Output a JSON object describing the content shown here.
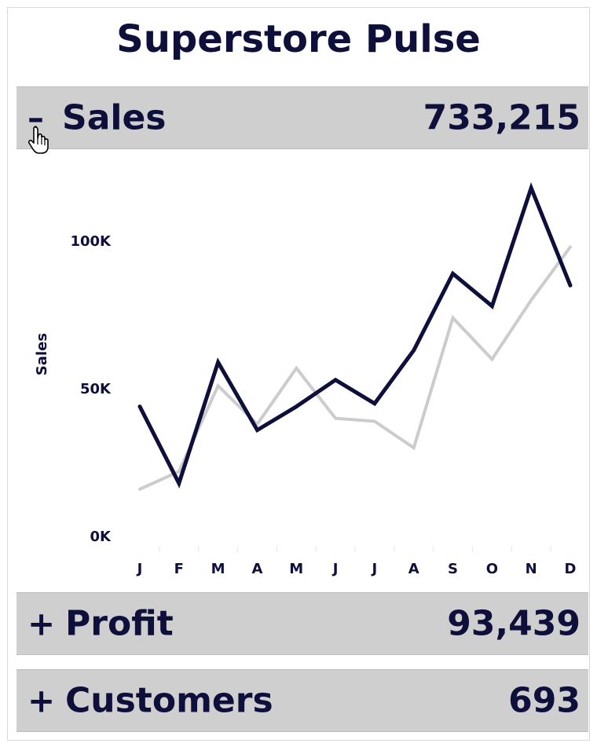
{
  "title": "Superstore Pulse",
  "sections": [
    {
      "toggle": "–",
      "label": "Sales",
      "value": "733,215"
    },
    {
      "toggle": "+",
      "label": "Profit",
      "value": "93,439"
    },
    {
      "toggle": "+",
      "label": "Customers",
      "value": "693"
    }
  ],
  "colors": {
    "primary": "#0f0f3c",
    "secondary": "#cccccc",
    "header_bg": "#cfcfcf"
  },
  "chart_data": {
    "type": "line",
    "ylabel": "Sales",
    "xlabel": "",
    "categories": [
      "J",
      "F",
      "M",
      "A",
      "M",
      "J",
      "J",
      "A",
      "S",
      "O",
      "N",
      "D"
    ],
    "yticks": [
      "0K",
      "50K",
      "100K"
    ],
    "ylim": [
      0,
      125000
    ],
    "grid": false,
    "series": [
      {
        "values": [
          44000,
          18000,
          59000,
          36000,
          44000,
          53000,
          45000,
          63000,
          89000,
          78000,
          118000,
          85000
        ],
        "color": "#0f0f3c"
      },
      {
        "values": [
          16000,
          22000,
          51000,
          38000,
          57000,
          40000,
          39000,
          30000,
          74000,
          60000,
          80000,
          98000
        ],
        "color": "#cccccc"
      }
    ]
  }
}
